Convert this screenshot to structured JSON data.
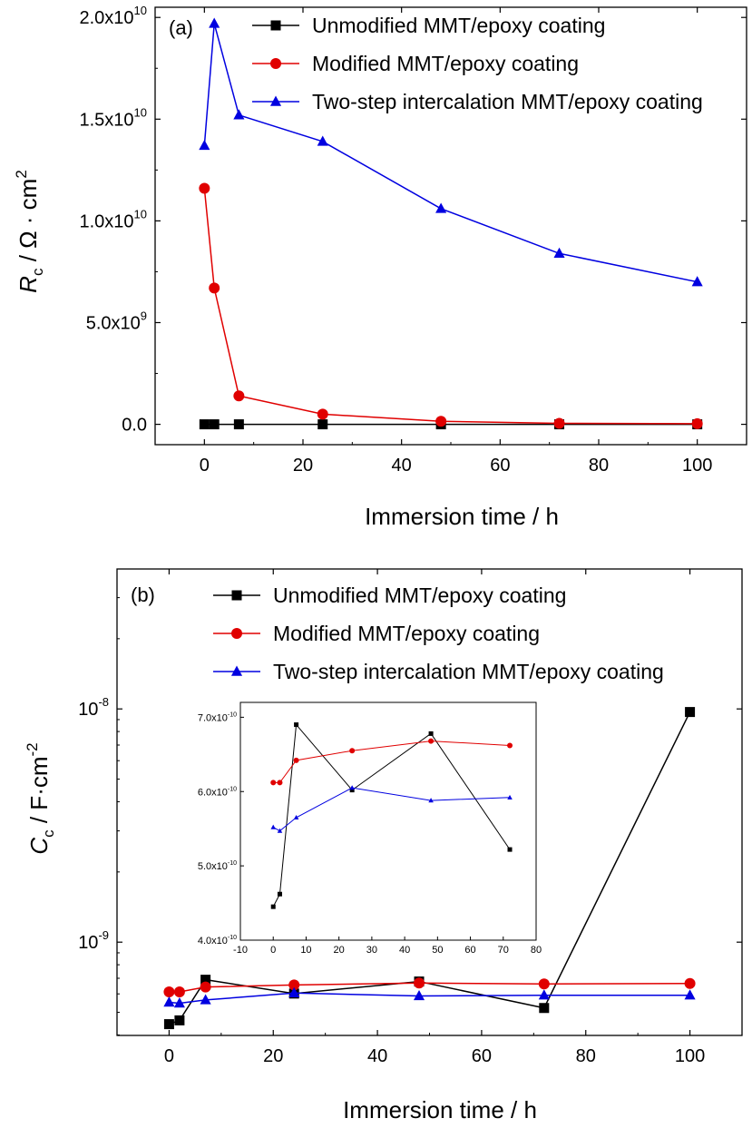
{
  "colors": {
    "unmodified": "#000000",
    "modified": "#e00000",
    "two_step": "#0000e0"
  },
  "legend": {
    "unmodified": "Unmodified MMT/epoxy coating",
    "modified": "Modified MMT/epoxy coating",
    "two_step": "Two-step intercalation MMT/epoxy coating"
  },
  "chart_data": [
    {
      "panel": "(a)",
      "type": "line",
      "xlabel": "Immersion time / h",
      "ylabel": {
        "symbol": "R",
        "sub": "c",
        "unit": " / Ω · cm",
        "sup": "2"
      },
      "xlim": [
        -10,
        110
      ],
      "ylim": [
        -1000000000.0,
        20500000000.0
      ],
      "xticks": [
        "0",
        "20",
        "40",
        "60",
        "80",
        "100"
      ],
      "yticks": [
        {
          "value": 0,
          "base": "0.0",
          "exp": ""
        },
        {
          "value": 5000000000.0,
          "base": "5.0x10",
          "exp": "9"
        },
        {
          "value": 10000000000.0,
          "base": "1.0x10",
          "exp": "10"
        },
        {
          "value": 15000000000.0,
          "base": "1.5x10",
          "exp": "10"
        },
        {
          "value": 20000000000.0,
          "base": "2.0x10",
          "exp": "10"
        }
      ],
      "legend_position": "top-right",
      "series": [
        {
          "name": "Unmodified MMT/epoxy coating",
          "key": "unmodified",
          "marker": "square",
          "x": [
            0,
            2,
            7,
            24,
            48,
            72,
            100
          ],
          "y": [
            0,
            0,
            0,
            0,
            0,
            0,
            0
          ]
        },
        {
          "name": "Modified MMT/epoxy coating",
          "key": "modified",
          "marker": "circle",
          "x": [
            0,
            2,
            7,
            24,
            48,
            72,
            100
          ],
          "y": [
            11600000000.0,
            6700000000.0,
            1400000000.0,
            500000000.0,
            150000000.0,
            50000000.0,
            30000000.0
          ]
        },
        {
          "name": "Two-step intercalation MMT/epoxy coating",
          "key": "two_step",
          "marker": "triangle",
          "x": [
            0,
            2,
            7,
            24,
            48,
            72,
            100
          ],
          "y": [
            13700000000.0,
            19700000000.0,
            15200000000.0,
            13900000000.0,
            10600000000.0,
            8400000000.0,
            7000000000.0
          ]
        }
      ]
    },
    {
      "panel": "(b)",
      "type": "line",
      "xlabel": "Immersion time / h",
      "ylabel": {
        "symbol": "C",
        "sub": "c",
        "unit": " / F·cm",
        "sup": "-2"
      },
      "xlim": [
        -10,
        110
      ],
      "ylim_log10": [
        -9.4,
        -7.4
      ],
      "yscale": "log",
      "xticks": [
        "0",
        "20",
        "40",
        "60",
        "80",
        "100"
      ],
      "yticks": [
        {
          "value": 1e-08,
          "base": "10",
          "exp": "-8"
        },
        {
          "value": 1e-09,
          "base": "10",
          "exp": "-9"
        }
      ],
      "legend_position": "top-right",
      "series": [
        {
          "name": "Unmodified MMT/epoxy coating",
          "key": "unmodified",
          "marker": "square",
          "x": [
            0,
            2,
            7,
            24,
            48,
            72,
            100
          ],
          "y": [
            4.45e-10,
            4.62e-10,
            6.9e-10,
            6.02e-10,
            6.78e-10,
            5.22e-10,
            9.7e-09
          ]
        },
        {
          "name": "Modified MMT/epoxy coating",
          "key": "modified",
          "marker": "circle",
          "x": [
            0,
            2,
            7,
            24,
            48,
            72,
            100
          ],
          "y": [
            6.12e-10,
            6.12e-10,
            6.42e-10,
            6.55e-10,
            6.68e-10,
            6.62e-10,
            6.65e-10
          ]
        },
        {
          "name": "Two-step intercalation MMT/epoxy coating",
          "key": "two_step",
          "marker": "triangle",
          "x": [
            0,
            2,
            7,
            24,
            48,
            72,
            100
          ],
          "y": [
            5.52e-10,
            5.47e-10,
            5.65e-10,
            6.05e-10,
            5.88e-10,
            5.92e-10,
            5.92e-10
          ]
        }
      ],
      "inset": {
        "xlim": [
          -10,
          80
        ],
        "ylim": [
          4e-10,
          7.2e-10
        ],
        "xticks": [
          "-10",
          "0",
          "10",
          "20",
          "30",
          "40",
          "50",
          "60",
          "70",
          "80"
        ],
        "yticks": [
          {
            "value": 4e-10,
            "base": "4.0x10",
            "exp": "-10"
          },
          {
            "value": 5e-10,
            "base": "5.0x10",
            "exp": "-10"
          },
          {
            "value": 6e-10,
            "base": "6.0x10",
            "exp": "-10"
          },
          {
            "value": 7e-10,
            "base": "7.0x10",
            "exp": "-10"
          }
        ],
        "series": [
          {
            "key": "unmodified",
            "marker": "square",
            "x": [
              0,
              2,
              7,
              24,
              48,
              72
            ],
            "y": [
              4.45e-10,
              4.62e-10,
              6.9e-10,
              6.02e-10,
              6.78e-10,
              5.22e-10
            ]
          },
          {
            "key": "modified",
            "marker": "circle",
            "x": [
              0,
              2,
              7,
              24,
              48,
              72
            ],
            "y": [
              6.12e-10,
              6.12e-10,
              6.42e-10,
              6.55e-10,
              6.68e-10,
              6.62e-10
            ]
          },
          {
            "key": "two_step",
            "marker": "triangle",
            "x": [
              0,
              2,
              7,
              24,
              48,
              72
            ],
            "y": [
              5.52e-10,
              5.47e-10,
              5.65e-10,
              6.05e-10,
              5.88e-10,
              5.92e-10
            ]
          }
        ]
      }
    }
  ]
}
